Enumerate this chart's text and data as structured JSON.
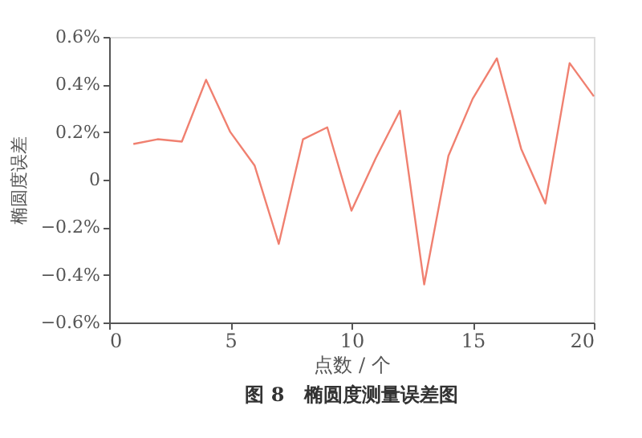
{
  "chart_data": {
    "type": "line",
    "xlabel": "点数 / 个",
    "ylabel": "椭圆度误差",
    "annotations": [
      "图 8　椭圆度测量误差图"
    ],
    "x": [
      1,
      2,
      3,
      4,
      5,
      6,
      7,
      8,
      9,
      10,
      11,
      12,
      13,
      14,
      15,
      16,
      17,
      18,
      19,
      20
    ],
    "series": [
      {
        "color": "#f08070",
        "values": [
          0.15,
          0.17,
          0.16,
          0.42,
          0.2,
          0.06,
          -0.27,
          0.17,
          0.22,
          -0.13,
          0.09,
          0.29,
          -0.44,
          0.1,
          0.34,
          0.51,
          0.13,
          -0.1,
          0.49,
          0.35
        ]
      }
    ],
    "xlim": [
      0,
      20
    ],
    "xticks": [
      0,
      5,
      10,
      15,
      20
    ],
    "ylim": [
      -0.6,
      0.6
    ],
    "yticks": [
      {
        "value": -0.6,
        "label": "−0.6%"
      },
      {
        "value": -0.4,
        "label": "−0.4%"
      },
      {
        "value": -0.2,
        "label": "−0.2%"
      },
      {
        "value": 0,
        "label": "0"
      },
      {
        "value": 0.2,
        "label": "0.2%"
      },
      {
        "value": 0.4,
        "label": "0.4%"
      },
      {
        "value": 0.6,
        "label": "0.6%"
      }
    ],
    "grid": false,
    "marker": "none",
    "line_style": "solid"
  }
}
